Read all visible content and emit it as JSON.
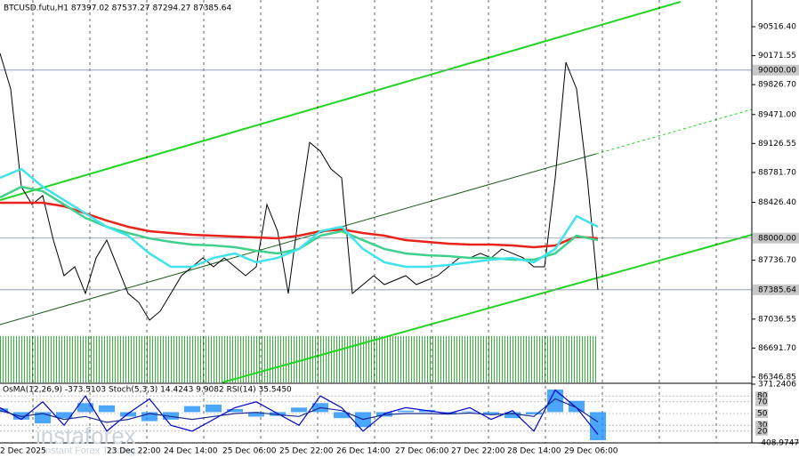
{
  "chart_data": [
    {
      "type": "line",
      "title": "BTCUSD.futu,H1  87397.02 87537.27 87294.27 87385.64",
      "ylim": [
        86283,
        90834
      ],
      "yticks": [
        {
          "value": 90516.4,
          "label": "90516.40"
        },
        {
          "value": 90171.55,
          "label": "90171.55"
        },
        {
          "value": 89826.7,
          "label": "89826.70"
        },
        {
          "value": 89471,
          "label": "89471.00"
        },
        {
          "value": 89126.55,
          "label": "89126.55"
        },
        {
          "value": 88781.7,
          "label": "88781.70"
        },
        {
          "value": 88426.4,
          "label": "88426.40"
        },
        {
          "value": 87736.7,
          "label": "87736.70"
        },
        {
          "value": 87036.55,
          "label": "87036.55"
        },
        {
          "value": 86691.7,
          "label": "86691.70"
        },
        {
          "value": 86346.85,
          "label": "86346.85"
        }
      ],
      "levels": [
        {
          "value": 90000,
          "label": "90000.00"
        },
        {
          "value": 88000,
          "label": "88000.00"
        },
        {
          "value": 87385.64,
          "label": "87385.64"
        }
      ],
      "x_labels": [
        "2 Dec 2025",
        "23 Dec 22:00",
        "24 Dec 14:00",
        "25 Dec 06:00",
        "25 Dec 22:00",
        "26 Dec 14:00",
        "27 Dec 06:00",
        "27 Dec 22:00",
        "28 Dec 14:00",
        "29 Dec 06:00"
      ],
      "series": [
        {
          "name": "BTCUSD.futu",
          "color": "#000000",
          "values": [
            90199,
            89776,
            88611,
            88400,
            88506,
            87976,
            87553,
            87659,
            87341,
            87765,
            87976,
            87659,
            87341,
            87235,
            87024,
            87130,
            87341,
            87553,
            87659,
            87765,
            87659,
            87765,
            87659,
            87553,
            87659,
            88400,
            88082,
            87341,
            88294,
            89140,
            89035,
            88823,
            88717,
            87341,
            87447,
            87553,
            87447,
            87500,
            87553,
            87447,
            87500,
            87553,
            87659,
            87765,
            87765,
            87818,
            87765,
            87871,
            87818,
            87765,
            87659,
            87659,
            88717,
            90093,
            89776,
            88717,
            87385.64
          ]
        },
        {
          "name": "MA red",
          "color": "#e8231a",
          "values": [
            88421,
            88421,
            88421,
            88379,
            88294,
            88209,
            88135,
            88082,
            88061,
            88040,
            88029,
            88019,
            88008,
            87997,
            88029,
            88082,
            88103,
            88061,
            88029,
            87976,
            87955,
            87934,
            87923,
            87923,
            87913,
            87892,
            87913,
            88019,
            87997
          ]
        },
        {
          "name": "MA green",
          "color": "#3ed08c",
          "values": [
            88484,
            88611,
            88558,
            88400,
            88241,
            88135,
            88061,
            87997,
            87955,
            87923,
            87913,
            87892,
            87849,
            87818,
            87871,
            88029,
            88082,
            87976,
            87871,
            87818,
            87796,
            87786,
            87765,
            87765,
            87743,
            87743,
            87818,
            88029,
            87976
          ]
        },
        {
          "name": "MA cyan",
          "color": "#3fe3ec",
          "values": [
            88717,
            88823,
            88611,
            88453,
            88294,
            88135,
            88029,
            87818,
            87659,
            87659,
            87765,
            87818,
            87712,
            87765,
            87871,
            88082,
            88135,
            87871,
            87712,
            87659,
            87659,
            87680,
            87712,
            87743,
            87765,
            87712,
            87871,
            88262,
            88135
          ]
        }
      ]
    },
    {
      "type": "oscillator",
      "title": "OsMA(12,26,9) -373.5103  Stoch(5,3,3) 14.4243 9.9082  RSI(14) 35.5450",
      "ylim": [
        0,
        100
      ],
      "yticks": [
        80,
        70,
        50,
        30,
        20
      ],
      "y2lim": [
        -408.9747,
        371.2406
      ],
      "y2ticks": [
        {
          "value": 371.2406,
          "label": "371.2406"
        },
        {
          "value": -408.9747,
          "label": "-408.9747"
        }
      ],
      "series": [
        {
          "name": "OsMA",
          "color": "#1e90ff",
          "axis": "y2",
          "values": [
            50,
            -100,
            -150,
            -80,
            120,
            90,
            -60,
            -120,
            -100,
            80,
            100,
            40,
            -60,
            -50,
            60,
            120,
            -80,
            -200,
            -60,
            20,
            30,
            -20,
            10,
            -30,
            -80,
            -30,
            300,
            150,
            -373.5103
          ]
        },
        {
          "name": "Stoch",
          "color": "#0000c8",
          "values": [
            60,
            40,
            70,
            30,
            80,
            20,
            50,
            75,
            30,
            20,
            40,
            60,
            70,
            50,
            30,
            80,
            60,
            20,
            50,
            60,
            55,
            50,
            60,
            40,
            55,
            20,
            90,
            60,
            14.4243
          ]
        },
        {
          "name": "RSI",
          "color": "#1a2a8c",
          "values": [
            55,
            45,
            50,
            40,
            45,
            35,
            40,
            50,
            45,
            40,
            45,
            50,
            52,
            48,
            45,
            60,
            55,
            40,
            48,
            50,
            50,
            49,
            51,
            48,
            50,
            45,
            75,
            60,
            35.545
          ]
        }
      ]
    }
  ],
  "watermark": {
    "brand": "instaforex",
    "tagline": "Instant Forex Trading"
  }
}
